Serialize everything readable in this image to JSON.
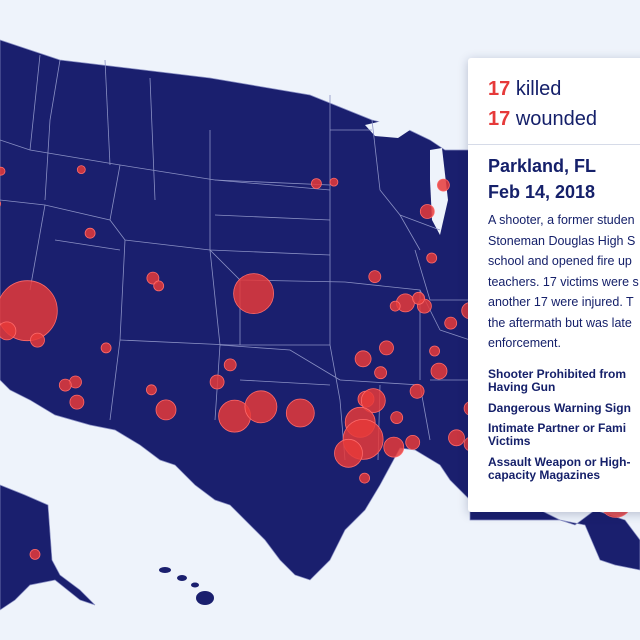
{
  "incident": {
    "killed_count": "17",
    "killed_label": "killed",
    "wounded_count": "17",
    "wounded_label": "wounded",
    "location": "Parkland, FL",
    "date": "Feb 14, 2018",
    "description_lines": [
      "A shooter, a former studen",
      "Stoneman Douglas High S",
      "school and opened fire up",
      "teachers. 17 victims were s",
      "another 17 were injured. T",
      "the aftermath but was late",
      "enforcement."
    ],
    "factors": [
      [
        "Shooter Prohibited from",
        "Having Gun"
      ],
      [
        "Dangerous Warning Sign"
      ],
      [
        "Intimate Partner or Fami",
        "Victims"
      ],
      [
        "Assault Weapon or High-",
        "capacity Magazines"
      ]
    ]
  },
  "colors": {
    "land": "#1a1f6e",
    "ocean": "#eef3fb",
    "marker": "#e63a3a",
    "accent_text": "#e63a3a",
    "body_text": "#15206a"
  },
  "markers": [
    {
      "lon": -122.3,
      "lat": 47.6,
      "r": 4
    },
    {
      "lon": -116.8,
      "lat": 47.7,
      "r": 4
    },
    {
      "lon": -116.2,
      "lat": 43.6,
      "r": 5
    },
    {
      "lon": -122.6,
      "lat": 45.5,
      "r": 4
    },
    {
      "lon": -120.5,
      "lat": 38.6,
      "r": 30
    },
    {
      "lon": -121.9,
      "lat": 37.3,
      "r": 9
    },
    {
      "lon": -119.8,
      "lat": 36.7,
      "r": 7
    },
    {
      "lon": -117.2,
      "lat": 34.0,
      "r": 6
    },
    {
      "lon": -117.9,
      "lat": 33.8,
      "r": 6
    },
    {
      "lon": -117.1,
      "lat": 32.7,
      "r": 7
    },
    {
      "lon": -115.1,
      "lat": 36.2,
      "r": 5
    },
    {
      "lon": -112.0,
      "lat": 33.5,
      "r": 5
    },
    {
      "lon": -111.0,
      "lat": 32.2,
      "r": 10
    },
    {
      "lon": -111.9,
      "lat": 40.7,
      "r": 6
    },
    {
      "lon": -111.5,
      "lat": 40.2,
      "r": 5
    },
    {
      "lon": -105.0,
      "lat": 39.7,
      "r": 20
    },
    {
      "lon": -106.6,
      "lat": 35.1,
      "r": 6
    },
    {
      "lon": -107.5,
      "lat": 34.0,
      "r": 7
    },
    {
      "lon": -106.3,
      "lat": 31.8,
      "r": 16
    },
    {
      "lon": -104.5,
      "lat": 32.4,
      "r": 16
    },
    {
      "lon": -101.8,
      "lat": 32.0,
      "r": 14
    },
    {
      "lon": -97.3,
      "lat": 32.9,
      "r": 8
    },
    {
      "lon": -96.8,
      "lat": 32.8,
      "r": 12
    },
    {
      "lon": -97.7,
      "lat": 31.4,
      "r": 15
    },
    {
      "lon": -97.5,
      "lat": 30.3,
      "r": 20
    },
    {
      "lon": -98.5,
      "lat": 29.4,
      "r": 14
    },
    {
      "lon": -95.4,
      "lat": 29.8,
      "r": 10
    },
    {
      "lon": -94.1,
      "lat": 30.1,
      "r": 7
    },
    {
      "lon": -97.4,
      "lat": 27.8,
      "r": 5
    },
    {
      "lon": -95.2,
      "lat": 31.7,
      "r": 6
    },
    {
      "lon": -97.5,
      "lat": 35.5,
      "r": 8
    },
    {
      "lon": -95.9,
      "lat": 36.2,
      "r": 7
    },
    {
      "lon": -96.3,
      "lat": 34.6,
      "r": 6
    },
    {
      "lon": -100.7,
      "lat": 46.8,
      "r": 5
    },
    {
      "lon": -99.5,
      "lat": 46.9,
      "r": 4
    },
    {
      "lon": -96.7,
      "lat": 40.8,
      "r": 6
    },
    {
      "lon": -94.6,
      "lat": 39.1,
      "r": 9
    },
    {
      "lon": -93.3,
      "lat": 38.9,
      "r": 7
    },
    {
      "lon": -93.7,
      "lat": 39.4,
      "r": 6
    },
    {
      "lon": -95.3,
      "lat": 38.9,
      "r": 5
    },
    {
      "lon": -92.3,
      "lat": 34.7,
      "r": 8
    },
    {
      "lon": -93.8,
      "lat": 33.4,
      "r": 7
    },
    {
      "lon": -92.6,
      "lat": 36.0,
      "r": 5
    },
    {
      "lon": -90.2,
      "lat": 38.6,
      "r": 8
    },
    {
      "lon": -91.5,
      "lat": 37.8,
      "r": 6
    },
    {
      "lon": -93.1,
      "lat": 45.0,
      "r": 7
    },
    {
      "lon": -92.0,
      "lat": 46.7,
      "r": 6
    },
    {
      "lon": -89.4,
      "lat": 43.1,
      "r": 8
    },
    {
      "lon": -88.0,
      "lat": 43.0,
      "r": 6
    },
    {
      "lon": -87.9,
      "lat": 42.0,
      "r": 10
    },
    {
      "lon": -87.6,
      "lat": 41.8,
      "r": 14
    },
    {
      "lon": -88.5,
      "lat": 40.1,
      "r": 7
    },
    {
      "lon": -89.6,
      "lat": 39.8,
      "r": 7
    },
    {
      "lon": -86.2,
      "lat": 41.7,
      "r": 6
    },
    {
      "lon": -90.1,
      "lat": 32.3,
      "r": 7
    },
    {
      "lon": -89.3,
      "lat": 31.3,
      "r": 6
    },
    {
      "lon": -91.1,
      "lat": 30.4,
      "r": 8
    },
    {
      "lon": -90.1,
      "lat": 30.0,
      "r": 7
    },
    {
      "lon": -87.7,
      "lat": 30.9,
      "r": 6
    },
    {
      "lon": -86.8,
      "lat": 33.5,
      "r": 7
    },
    {
      "lon": -80.6,
      "lat": 28.3,
      "r": 6
    },
    {
      "lon": -80.2,
      "lat": 26.3,
      "r": 16
    },
    {
      "lon": -81.7,
      "lat": 26.5,
      "r": 8
    },
    {
      "lon": -150.0,
      "lat": 61.2,
      "r": 5
    },
    {
      "lon": -92.8,
      "lat": 42.0,
      "r": 5
    },
    {
      "lon": -89.7,
      "lat": 33.9,
      "r": 5
    }
  ]
}
